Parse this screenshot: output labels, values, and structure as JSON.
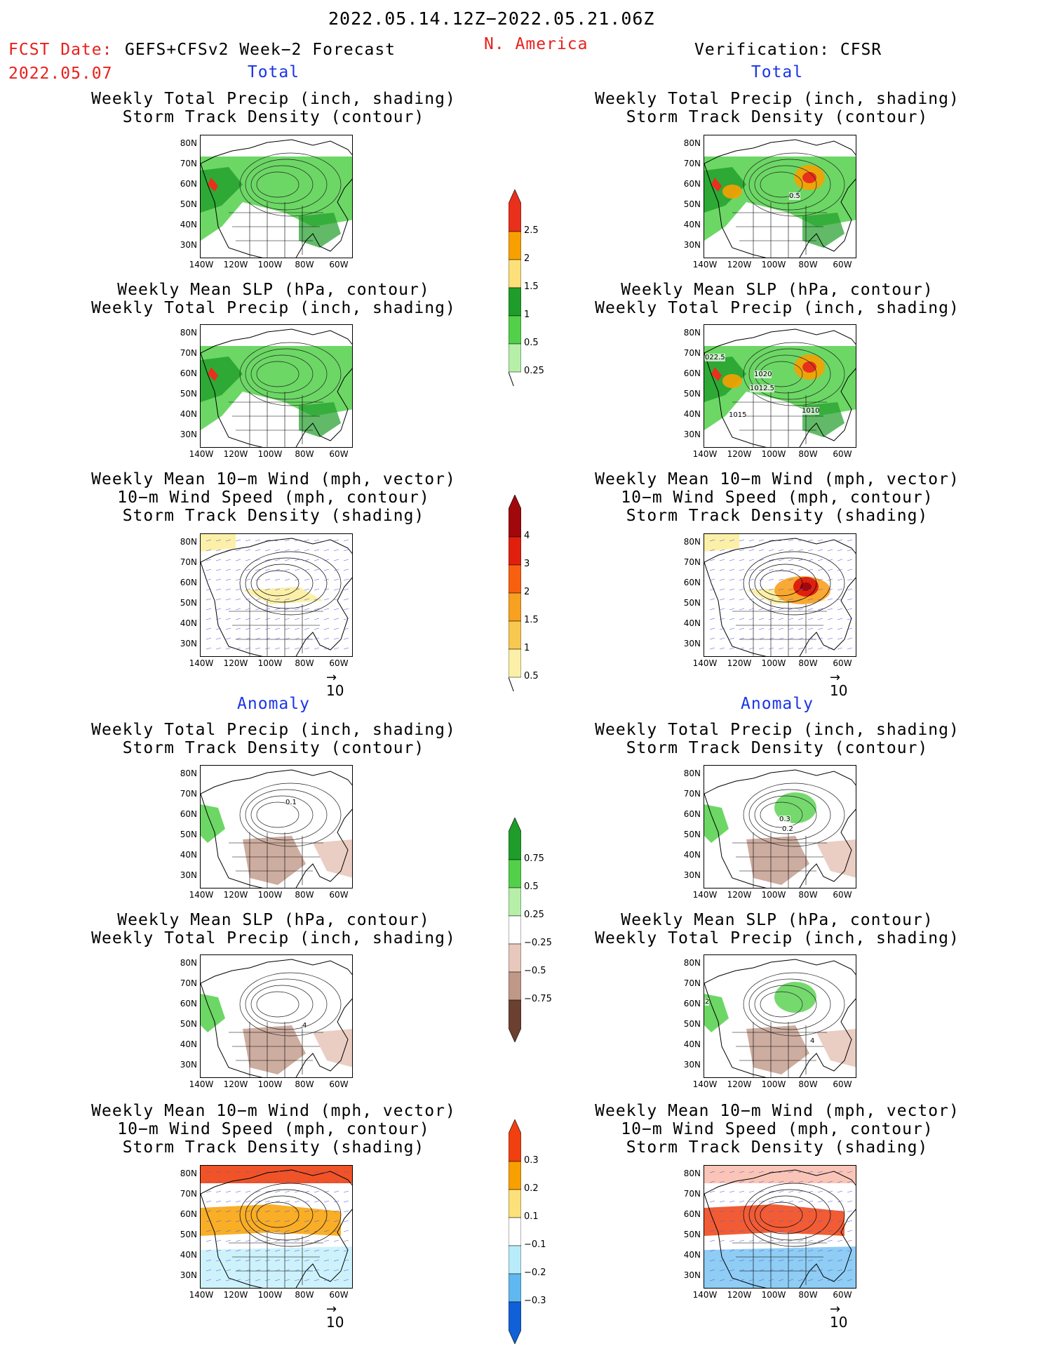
{
  "header": {
    "period": "2022.05.14.12Z−2022.05.21.06Z",
    "fcst_label": "FCST Date:",
    "fcst_model": "GEFS+CFSv2 Week−2 Forecast",
    "fcst_date": "2022.05.07",
    "region": "N. America",
    "verification": "Verification: CFSR"
  },
  "sections": {
    "total": "Total",
    "anomaly": "Anomaly"
  },
  "panels": {
    "precip_storm": [
      "Weekly Total Precip (inch, shading)",
      "Storm Track Density (contour)"
    ],
    "slp_precip": [
      "Weekly Mean SLP (hPa, contour)",
      "Weekly Total Precip (inch, shading)"
    ],
    "wind_storm": [
      "Weekly Mean 10−m Wind (mph, vector)",
      "10−m Wind Speed (mph, contour)",
      "Storm Track Density (shading)"
    ]
  },
  "axes": {
    "lat": [
      "80N",
      "70N",
      "60N",
      "50N",
      "40N",
      "30N"
    ],
    "lon": [
      "140W",
      "120W",
      "100W",
      "80W",
      "60W"
    ]
  },
  "vector_ref": "10",
  "colorbars": {
    "precip_total": {
      "labels": [
        "2.5",
        "2",
        "1.5",
        "1",
        "0.5",
        "0.25"
      ],
      "colors": [
        "#e8301c",
        "#f8a000",
        "#fde07a",
        "#1f9d2a",
        "#52d04a",
        "#b6f0a8"
      ]
    },
    "storm_total": {
      "labels": [
        "4",
        "3",
        "2",
        "1.5",
        "1",
        "0.5"
      ],
      "colors": [
        "#a0080c",
        "#e0200c",
        "#f86010",
        "#f8a020",
        "#f8c850",
        "#fcf0a8"
      ]
    },
    "precip_anom": {
      "labels": [
        "0.75",
        "0.5",
        "0.25",
        "−0.25",
        "−0.5",
        "−0.75"
      ],
      "colors": [
        "#1f9d2a",
        "#52d04a",
        "#b6f0a8",
        "#ffffff",
        "#e8c8bc",
        "#c09888",
        "#6b4030"
      ]
    },
    "storm_anom": {
      "labels": [
        "0.3",
        "0.2",
        "0.1",
        "−0.1",
        "−0.2",
        "−0.3"
      ],
      "colors": [
        "#f04010",
        "#f8a000",
        "#fde07a",
        "#ffffff",
        "#b8ecfa",
        "#60b8f0",
        "#1060d8"
      ]
    }
  },
  "map_labels": {
    "obs_storm_contour": "0.5",
    "obs_slp": [
      "022.5",
      "1020",
      "1012.5",
      "1015",
      "1010"
    ],
    "anom_fcst_storm": "0.1",
    "anom_obs_storm": [
      "0.3",
      "0.2"
    ],
    "anom_fcst_slp": "4",
    "anom_obs_slp": [
      "2",
      "4"
    ]
  }
}
